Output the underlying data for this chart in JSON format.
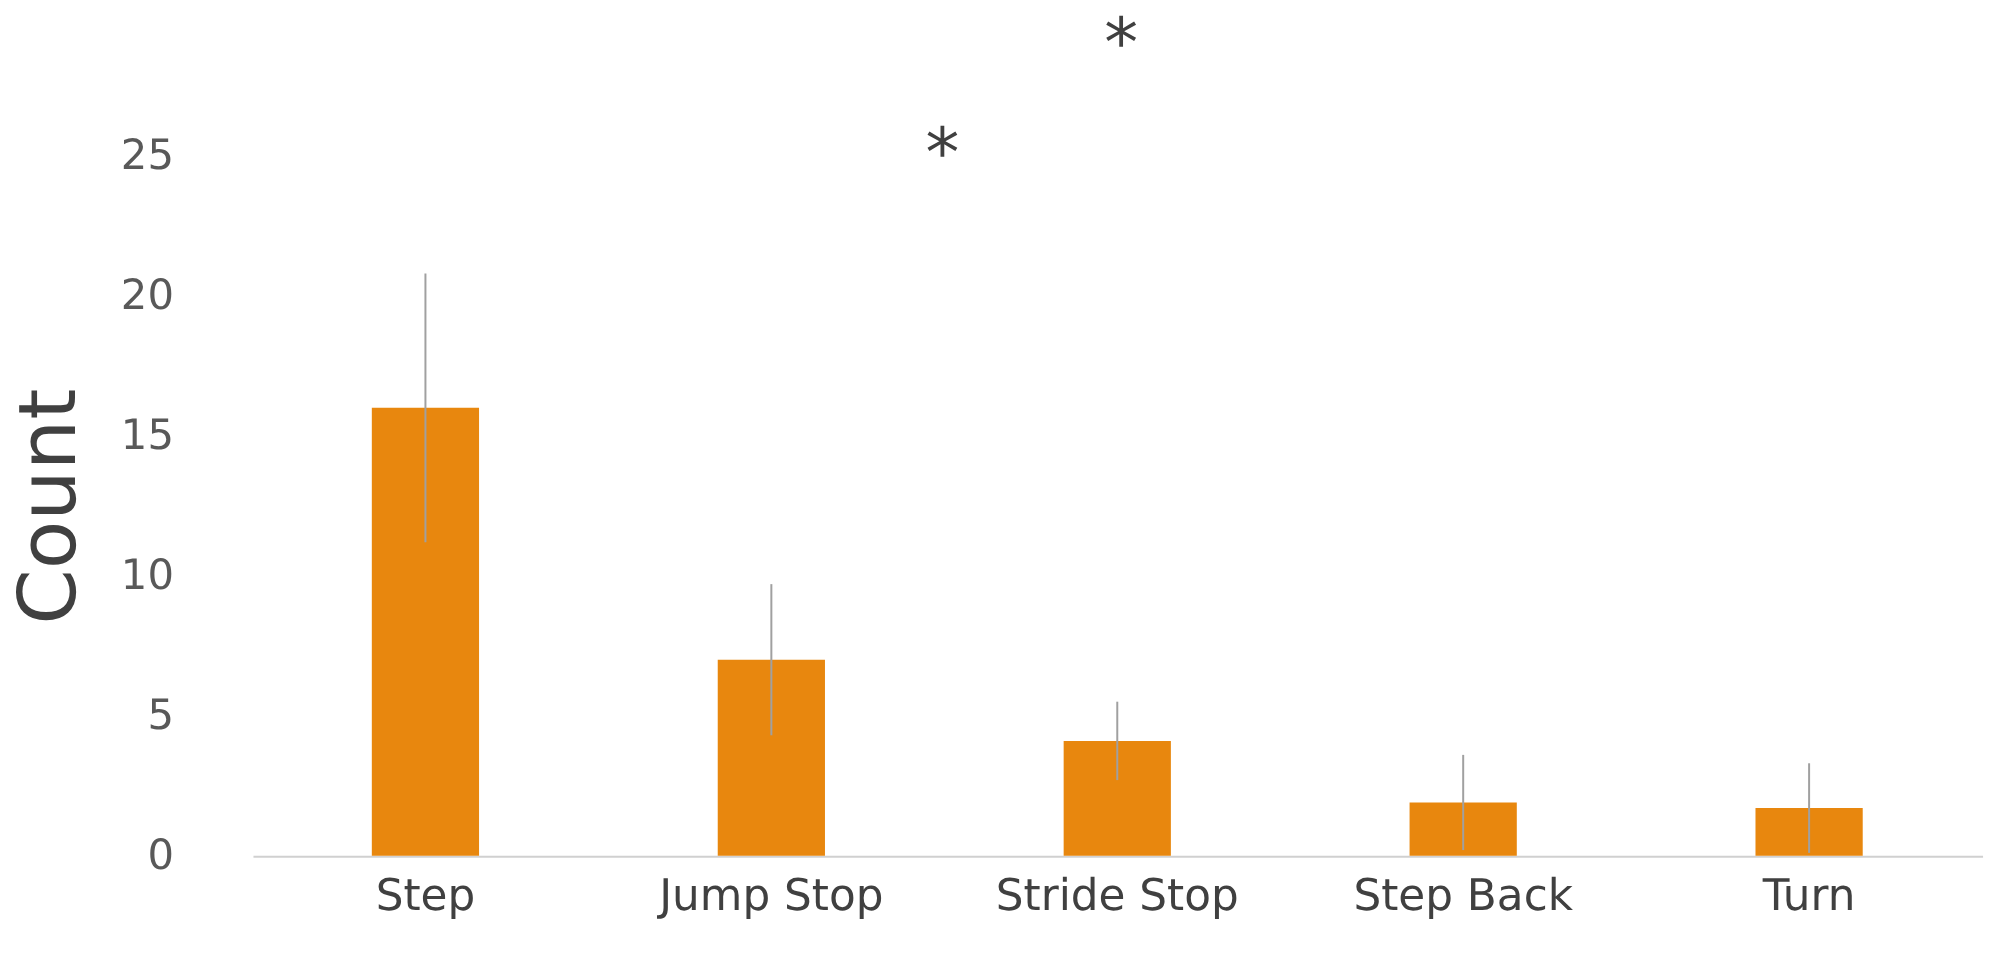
{
  "chart_data": {
    "type": "bar",
    "ylabel": "Count",
    "categories": [
      "Step",
      "Jump Stop",
      "Stride Stop",
      "Step Back",
      "Turn"
    ],
    "values": [
      16,
      7,
      4.1,
      1.9,
      1.7
    ],
    "errors": [
      4.8,
      2.7,
      1.4,
      1.7,
      1.6
    ],
    "color": "#e8870e",
    "ylim": [
      0,
      25
    ],
    "yticks": [
      0,
      5,
      10,
      15,
      20,
      25
    ],
    "grid": false,
    "annotations": [
      "*",
      "*"
    ]
  }
}
